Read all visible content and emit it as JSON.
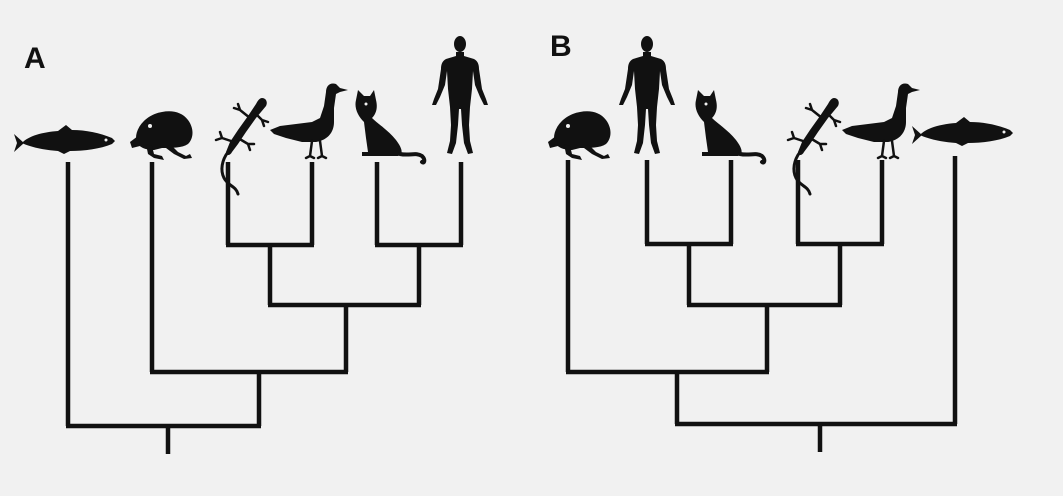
{
  "panels": [
    {
      "id": "A",
      "label": "A",
      "taxa_order": [
        "fish-icon",
        "frog-icon",
        "lizard-icon",
        "goose-icon",
        "cat-icon",
        "human-icon"
      ]
    },
    {
      "id": "B",
      "label": "B",
      "taxa_order": [
        "frog-icon",
        "human-icon",
        "cat-icon",
        "lizard-icon",
        "goose-icon",
        "fish-icon"
      ]
    }
  ],
  "colors": {
    "background": "#f1f1f1",
    "ink": "#111111"
  }
}
